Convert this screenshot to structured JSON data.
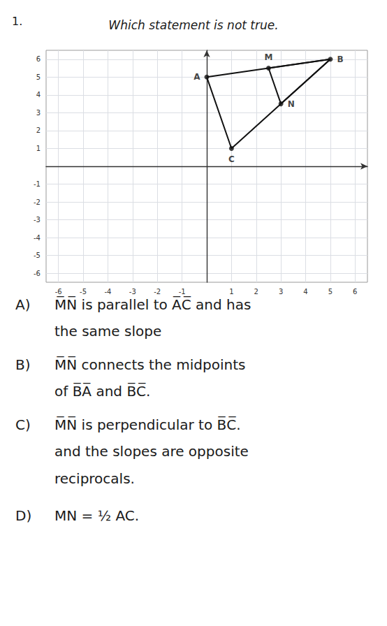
{
  "chart_data": {
    "type": "line",
    "title": "Which statement is not true.",
    "series": [
      {
        "type": "line",
        "color": "#111111",
        "x": [
          0,
          5,
          1,
          0
        ],
        "y": [
          5,
          6,
          1,
          5
        ]
      },
      {
        "type": "line",
        "color": "#111111",
        "x": [
          2.5,
          3.0
        ],
        "y": [
          5.5,
          3.5
        ]
      },
      {
        "type": "line",
        "color": "#111111",
        "x": [
          5,
          2.5
        ],
        "y": [
          6,
          5.5
        ]
      },
      {
        "type": "line",
        "color": "#111111",
        "x": [
          5,
          3.0
        ],
        "y": [
          6,
          3.5
        ]
      },
      {
        "type": "scatter",
        "color": "#111111",
        "x": [
          0,
          5,
          1,
          2.5,
          3.0
        ],
        "y": [
          5,
          6,
          1,
          5.5,
          3.5
        ],
        "value_labels": [
          "A",
          "B",
          "C",
          "M",
          "N"
        ]
      }
    ],
    "xlim": [
      -6.5,
      6.5
    ],
    "ylim": [
      -6.5,
      6.5
    ],
    "xticks": [
      -6,
      -5,
      -4,
      -3,
      -2,
      -1,
      1,
      2,
      3,
      4,
      5,
      6
    ],
    "yticks": [
      -6,
      -5,
      -4,
      -3,
      -2,
      -1,
      1,
      2,
      3,
      4,
      5,
      6
    ],
    "grid": true,
    "annotations": [
      {
        "text": "1."
      },
      {
        "label": "A)",
        "lines": [
          "M̅N̅ is parallel to A̅C̅ and has",
          "the same slope"
        ]
      },
      {
        "label": "B)",
        "lines": [
          "M̅N̅ connects the midpoints",
          "of B̅A̅ and B̅C̅."
        ]
      },
      {
        "label": "C)",
        "lines": [
          "M̅N̅ is perpendicular to B̅C̅.",
          "and the slopes are opposite",
          "reciprocals."
        ]
      },
      {
        "label": "D)",
        "lines": [
          "MN = ½ AC."
        ]
      }
    ]
  }
}
